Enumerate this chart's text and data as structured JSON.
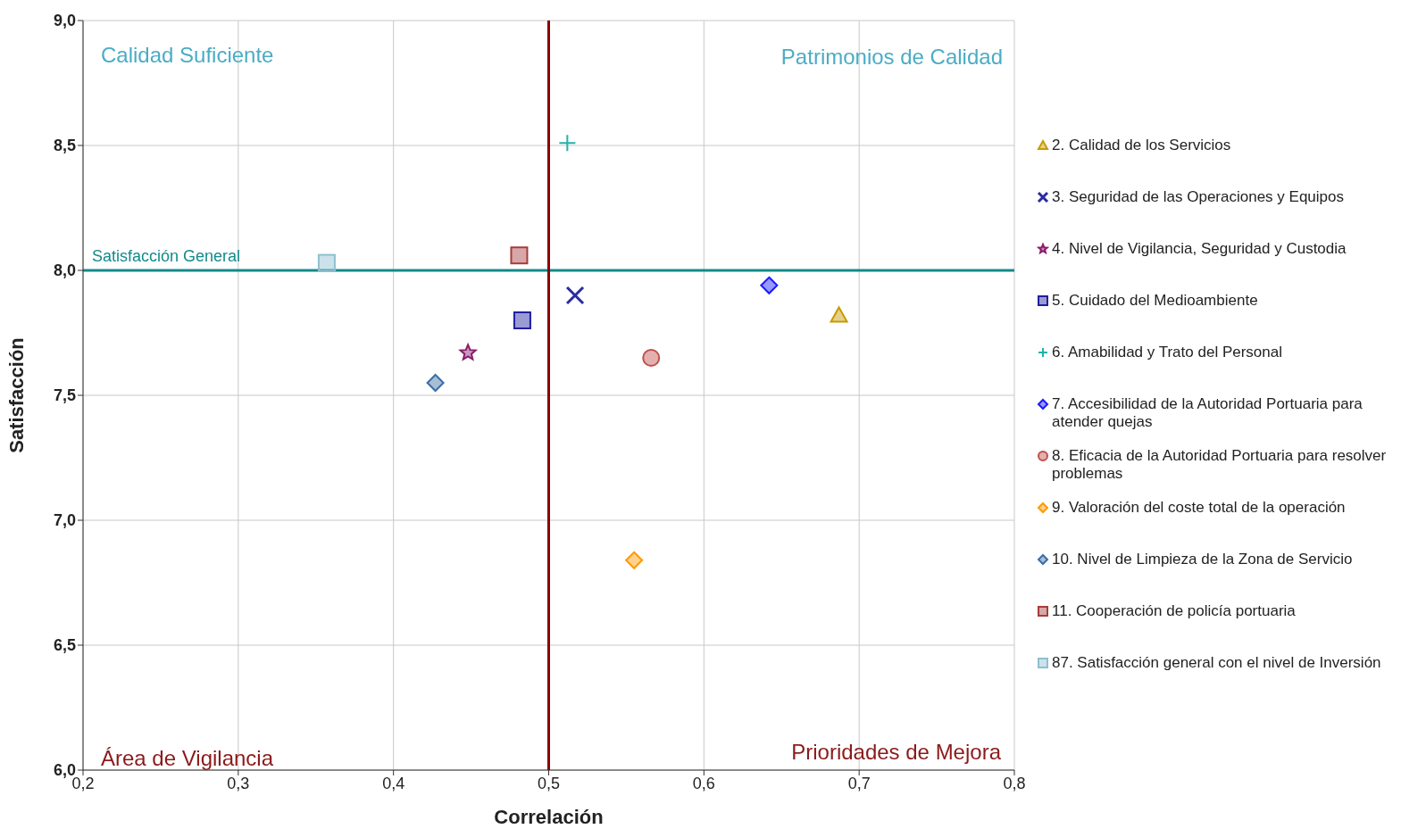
{
  "chart_data": {
    "type": "scatter",
    "xlabel": "Correlación",
    "ylabel": "Satisfacción",
    "xlim": [
      0.2,
      0.8
    ],
    "xticks": [
      {
        "value": 0.2,
        "label": "0,2"
      },
      {
        "value": 0.3,
        "label": "0,3"
      },
      {
        "value": 0.4,
        "label": "0,4"
      },
      {
        "value": 0.5,
        "label": "0,5"
      },
      {
        "value": 0.6,
        "label": "0,6"
      },
      {
        "value": 0.7,
        "label": "0,7"
      },
      {
        "value": 0.8,
        "label": "0,8"
      }
    ],
    "ylim": [
      6.0,
      9.0
    ],
    "yticks": [
      {
        "value": 6.0,
        "label": "6,0"
      },
      {
        "value": 6.5,
        "label": "6,5"
      },
      {
        "value": 7.0,
        "label": "7,0"
      },
      {
        "value": 7.5,
        "label": "7,5"
      },
      {
        "value": 8.0,
        "label": "8,0"
      },
      {
        "value": 8.5,
        "label": "8,5"
      },
      {
        "value": 9.0,
        "label": "9,0"
      }
    ],
    "grid": true,
    "legend": "right",
    "ref_lines": [
      {
        "axis": "y",
        "value": 8.0,
        "label": "Satisfacción General",
        "color": "#138a8a"
      },
      {
        "axis": "x",
        "value": 0.5,
        "label": null,
        "color": "#8b0000"
      }
    ],
    "annotations": [
      "Calidad Suficiente",
      "Patrimonios de Calidad",
      "Área de Vigilancia",
      "Prioridades de Mejora"
    ],
    "series": [
      {
        "name": "2. Calidad de los Servicios",
        "color": "#c89a00",
        "marker": "triangle",
        "x": [
          0.687
        ],
        "values": [
          7.82
        ]
      },
      {
        "name": "3. Seguridad de las Operaciones y Equipos",
        "color": "#2a2aa0",
        "marker": "x",
        "x": [
          0.517
        ],
        "values": [
          7.9
        ]
      },
      {
        "name": "4. Nivel de Vigilancia, Seguridad y Custodia",
        "color": "#8b1a6b",
        "marker": "star",
        "x": [
          0.448
        ],
        "values": [
          7.67
        ]
      },
      {
        "name": "5. Cuidado del Medioambiente",
        "color": "#1f1f9f",
        "marker": "square",
        "x": [
          0.483
        ],
        "values": [
          7.8
        ]
      },
      {
        "name": "6. Amabilidad y Trato del Personal",
        "color": "#20b2aa",
        "marker": "cross",
        "x": [
          0.512
        ],
        "values": [
          8.51
        ]
      },
      {
        "name": "7. Accesibilidad de la Autoridad Portuaria para atender quejas",
        "color": "#1a1aff",
        "marker": "diamond",
        "x": [
          0.642
        ],
        "values": [
          7.94
        ]
      },
      {
        "name": "8. Eficacia de la Autoridad Portuaria para resolver problemas",
        "color": "#c0504d",
        "marker": "circle",
        "x": [
          0.566
        ],
        "values": [
          7.65
        ]
      },
      {
        "name": "9. Valoración del coste total de la operación",
        "color": "#ff9900",
        "marker": "diamond",
        "x": [
          0.555
        ],
        "values": [
          6.84
        ]
      },
      {
        "name": "10. Nivel de Limpieza de la Zona de Servicio",
        "color": "#3b6ea5",
        "marker": "diamond",
        "x": [
          0.427
        ],
        "values": [
          7.55
        ]
      },
      {
        "name": "11. Cooperación de policía portuaria",
        "color": "#a83c3c",
        "marker": "square",
        "x": [
          0.481
        ],
        "values": [
          8.06
        ]
      },
      {
        "name": "87.   Satisfacción general con el nivel de Inversión",
        "color": "#8fbfd0",
        "marker": "square",
        "x": [
          0.357
        ],
        "values": [
          8.03
        ]
      }
    ]
  }
}
